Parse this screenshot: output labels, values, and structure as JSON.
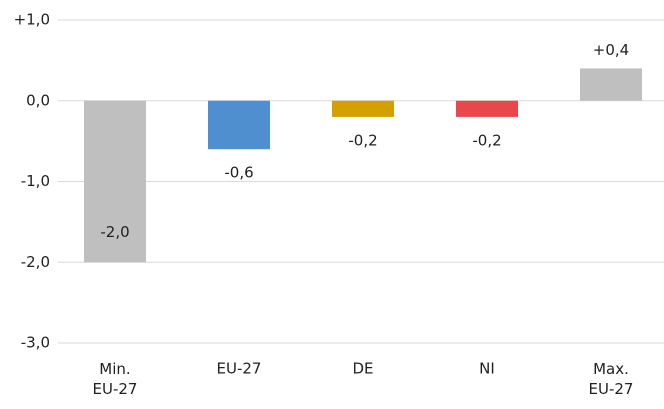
{
  "chart_data": {
    "type": "bar",
    "categories": [
      "Min.\nEU-27",
      "EU-27",
      "DE",
      "NI",
      "Max.\nEU-27"
    ],
    "values": [
      -2.0,
      -0.6,
      -0.2,
      -0.2,
      0.4
    ],
    "value_labels": [
      "-2,0",
      "-0,6",
      "-0,2",
      "-0,2",
      "+0,4"
    ],
    "colors": [
      "#bfbfbf",
      "#4f8fcf",
      "#d4a000",
      "#e8474c",
      "#bfbfbf"
    ],
    "ylim": [
      -3,
      1
    ],
    "yticks": [
      {
        "value": 1,
        "label": "+1,0"
      },
      {
        "value": 0,
        "label": "0,0"
      },
      {
        "value": -1,
        "label": "-1,0"
      },
      {
        "value": -2,
        "label": "-2,0"
      },
      {
        "value": -3,
        "label": "-3,0"
      }
    ],
    "grid": true
  }
}
